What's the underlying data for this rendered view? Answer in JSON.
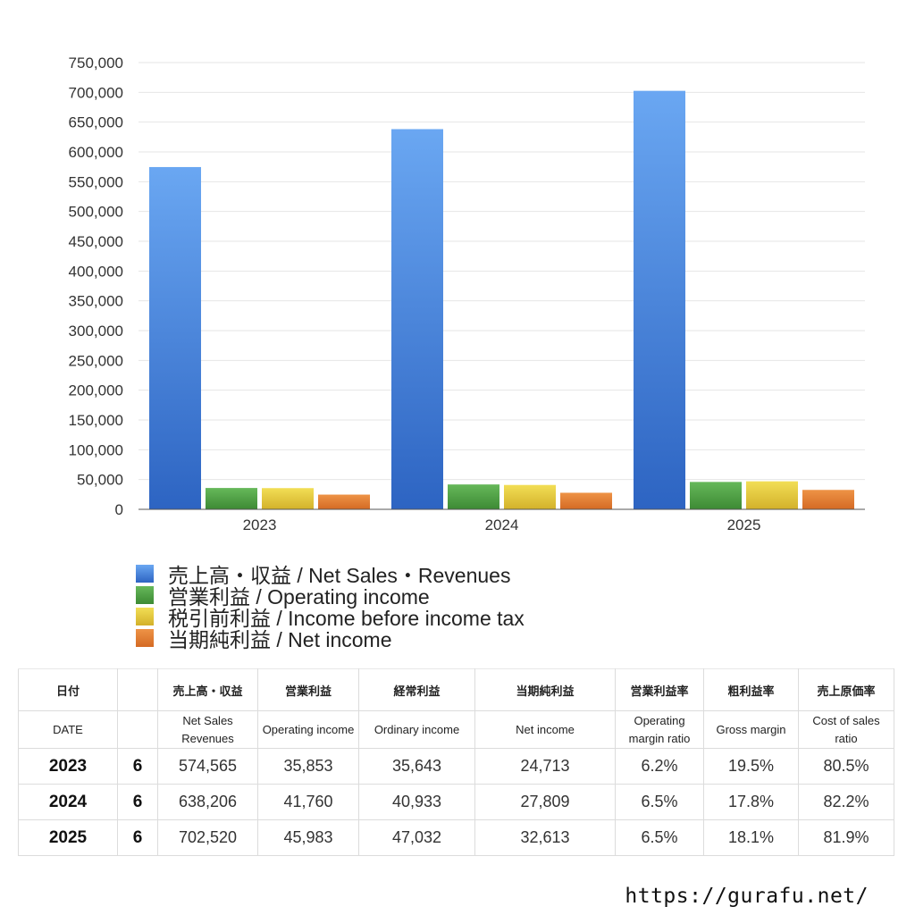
{
  "chart_data": {
    "type": "bar",
    "categories": [
      "2023",
      "2024",
      "2025"
    ],
    "series": [
      {
        "name": "売上高・収益 / Net Sales・Revenues",
        "values": [
          574565,
          638206,
          702520
        ],
        "color": "#4a86dc"
      },
      {
        "name": "営業利益 / Operating income",
        "values": [
          35853,
          41760,
          45983
        ],
        "color": "#4fa345"
      },
      {
        "name": "税引前利益 / Income before income tax",
        "values": [
          35643,
          40933,
          47032
        ],
        "color": "#e3c83a"
      },
      {
        "name": "当期純利益 / Net income",
        "values": [
          24713,
          27809,
          32613
        ],
        "color": "#e07a32"
      }
    ],
    "ylim": [
      0,
      750000
    ],
    "yticks": [
      "0",
      "50,000",
      "100,000",
      "150,000",
      "200,000",
      "250,000",
      "300,000",
      "350,000",
      "400,000",
      "450,000",
      "500,000",
      "550,000",
      "600,000",
      "650,000",
      "700,000",
      "750,000"
    ],
    "grid": true,
    "legend_position": "bottom-left"
  },
  "table": {
    "headers_ja": [
      "日付",
      "",
      "売上高・収益",
      "営業利益",
      "経常利益",
      "当期純利益",
      "営業利益率",
      "粗利益率",
      "売上原価率"
    ],
    "headers_en": [
      "DATE",
      "",
      "Net Sales Revenues",
      "Operating income",
      "Ordinary income",
      "Net income",
      "Operating margin ratio",
      "Gross margin",
      "Cost of sales ratio"
    ],
    "rows": [
      {
        "year": "2023",
        "month": "6",
        "net_sales": "574,565",
        "operating_income": "35,853",
        "ordinary_income": "35,643",
        "net_income": "24,713",
        "operating_margin": "6.2%",
        "gross_margin": "19.5%",
        "cost_ratio": "80.5%"
      },
      {
        "year": "2024",
        "month": "6",
        "net_sales": "638,206",
        "operating_income": "41,760",
        "ordinary_income": "40,933",
        "net_income": "27,809",
        "operating_margin": "6.5%",
        "gross_margin": "17.8%",
        "cost_ratio": "82.2%"
      },
      {
        "year": "2025",
        "month": "6",
        "net_sales": "702,520",
        "operating_income": "45,983",
        "ordinary_income": "47,032",
        "net_income": "32,613",
        "operating_margin": "6.5%",
        "gross_margin": "18.1%",
        "cost_ratio": "81.9%"
      }
    ]
  },
  "site_url": "https://gurafu.net/"
}
